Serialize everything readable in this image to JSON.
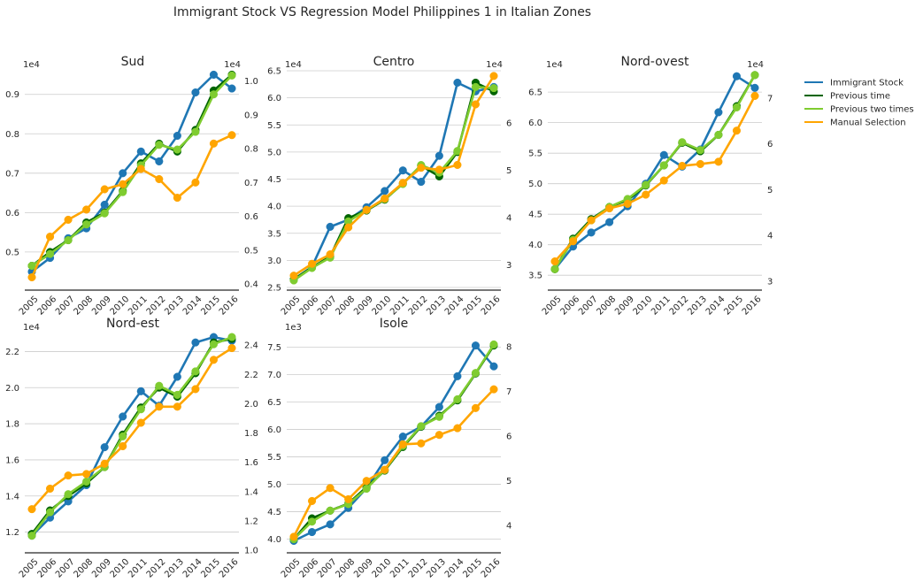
{
  "figure": {
    "title": "Immigrant Stock VS Regression Model Philippines 1 in Italian Zones"
  },
  "legend": {
    "items": [
      {
        "label": "Immigrant Stock",
        "color": "#1f77b4"
      },
      {
        "label": "Previous time",
        "color": "#006400"
      },
      {
        "label": "Previous two times",
        "color": "#7fcc30"
      },
      {
        "label": "Manual Selection",
        "color": "#ffa500"
      }
    ]
  },
  "chart_data": [
    {
      "type": "line",
      "title": "Sud",
      "x": [
        2005,
        2006,
        2007,
        2008,
        2009,
        2010,
        2011,
        2012,
        2013,
        2014,
        2015,
        2016
      ],
      "left_axis": {
        "offset_label": "1e4",
        "ylim": [
          0.41,
          0.96
        ],
        "ticks": [
          0.5,
          0.6,
          0.7,
          0.8,
          0.9
        ],
        "tick_labels": [
          "0.5",
          "0.6",
          "0.7",
          "0.8",
          "0.9"
        ]
      },
      "right_axis": {
        "offset_label": "1e4",
        "ylim": [
          0.39,
          1.03
        ],
        "ticks": [
          0.4,
          0.5,
          0.6,
          0.7,
          0.8,
          0.9,
          1.0
        ],
        "tick_labels": [
          "0.4",
          "0.5",
          "0.6",
          "0.7",
          "0.8",
          "0.9",
          "1.0"
        ]
      },
      "series": [
        {
          "name": "Immigrant Stock",
          "axis": "left",
          "color": "#1f77b4",
          "values": [
            0.45,
            0.485,
            0.535,
            0.56,
            0.62,
            0.7,
            0.755,
            0.73,
            0.795,
            0.905,
            0.95,
            0.915
          ]
        },
        {
          "name": "Previous time",
          "axis": "left",
          "color": "#006400",
          "values": [
            0.465,
            0.5,
            0.53,
            0.575,
            0.6,
            0.655,
            0.725,
            0.775,
            0.755,
            0.81,
            0.91,
            0.95
          ]
        },
        {
          "name": "Previous two times",
          "axis": "left",
          "color": "#7fcc30",
          "values": [
            0.465,
            0.495,
            0.53,
            0.57,
            0.598,
            0.652,
            0.72,
            0.772,
            0.76,
            0.805,
            0.9,
            0.948
          ]
        },
        {
          "name": "Manual Selection",
          "axis": "right",
          "color": "#ffa500",
          "values": [
            0.42,
            0.54,
            0.59,
            0.62,
            0.68,
            0.695,
            0.74,
            0.71,
            0.655,
            0.7,
            0.815,
            0.84
          ]
        }
      ]
    },
    {
      "type": "line",
      "title": "Centro",
      "x": [
        2005,
        2006,
        2007,
        2008,
        2009,
        2010,
        2011,
        2012,
        2013,
        2014,
        2015,
        2016
      ],
      "left_axis": {
        "offset_label": "1e4",
        "ylim": [
          2.5,
          6.5
        ],
        "ticks": [
          2.5,
          3.0,
          3.5,
          4.0,
          4.5,
          5.0,
          5.5,
          6.0,
          6.5
        ],
        "tick_labels": [
          "2.5",
          "3.0",
          "3.5",
          "4.0",
          "4.5",
          "5.0",
          "5.5",
          "6.0",
          "6.5"
        ]
      },
      "right_axis": {
        "offset_label": "1e4",
        "ylim": [
          2.52,
          7.1
        ],
        "ticks": [
          3,
          4,
          5,
          6
        ],
        "tick_labels": [
          "3",
          "4",
          "5",
          "6"
        ]
      },
      "series": [
        {
          "name": "Immigrant Stock",
          "axis": "left",
          "color": "#1f77b4",
          "values": [
            2.65,
            2.88,
            3.62,
            3.75,
            3.98,
            4.28,
            4.66,
            4.45,
            4.93,
            6.28,
            6.12,
            6.2
          ]
        },
        {
          "name": "Previous time",
          "axis": "left",
          "color": "#006400",
          "values": [
            2.65,
            2.87,
            3.07,
            3.78,
            3.92,
            4.12,
            4.42,
            4.75,
            4.55,
            5.0,
            6.28,
            6.12
          ]
        },
        {
          "name": "Previous two times",
          "axis": "left",
          "color": "#7fcc30",
          "values": [
            2.63,
            2.86,
            3.05,
            3.72,
            3.93,
            4.13,
            4.41,
            4.76,
            4.62,
            5.02,
            6.2,
            6.18
          ]
        },
        {
          "name": "Manual Selection",
          "axis": "right",
          "color": "#ffa500",
          "values": [
            2.77,
            3.02,
            3.22,
            3.79,
            4.16,
            4.4,
            4.73,
            5.05,
            5.01,
            5.11,
            6.39,
            6.99
          ]
        }
      ]
    },
    {
      "type": "line",
      "title": "Nord-ovest",
      "x": [
        2005,
        2006,
        2007,
        2008,
        2009,
        2010,
        2011,
        2012,
        2013,
        2014,
        2015,
        2016
      ],
      "left_axis": {
        "offset_label": "1e4",
        "ylim": [
          3.3,
          6.85
        ],
        "ticks": [
          3.5,
          4.0,
          4.5,
          5.0,
          5.5,
          6.0,
          6.5
        ],
        "tick_labels": [
          "3.5",
          "4.0",
          "4.5",
          "5.0",
          "5.5",
          "6.0",
          "6.5"
        ]
      },
      "right_axis": {
        "offset_label": "1e4",
        "ylim": [
          2.86,
          7.6
        ],
        "ticks": [
          3,
          4,
          5,
          6,
          7
        ],
        "tick_labels": [
          "3",
          "4",
          "5",
          "6",
          "7"
        ]
      },
      "series": [
        {
          "name": "Immigrant Stock",
          "axis": "left",
          "color": "#1f77b4",
          "values": [
            3.6,
            3.97,
            4.2,
            4.37,
            4.63,
            5.0,
            5.47,
            5.28,
            5.56,
            6.17,
            6.76,
            6.57
          ]
        },
        {
          "name": "Previous time",
          "axis": "left",
          "color": "#006400",
          "values": [
            3.6,
            4.1,
            4.42,
            4.62,
            4.73,
            4.97,
            5.3,
            5.67,
            5.53,
            5.8,
            6.27,
            6.78
          ]
        },
        {
          "name": "Previous two times",
          "axis": "left",
          "color": "#7fcc30",
          "values": [
            3.6,
            4.08,
            4.4,
            4.62,
            4.75,
            4.98,
            5.3,
            5.68,
            5.55,
            5.8,
            6.25,
            6.78
          ]
        },
        {
          "name": "Manual Selection",
          "axis": "right",
          "color": "#ffa500",
          "values": [
            3.43,
            3.87,
            4.33,
            4.59,
            4.69,
            4.89,
            5.2,
            5.52,
            5.56,
            5.61,
            6.29,
            7.05
          ]
        }
      ]
    },
    {
      "type": "line",
      "title": "Nord-est",
      "x": [
        2005,
        2006,
        2007,
        2008,
        2009,
        2010,
        2011,
        2012,
        2013,
        2014,
        2015,
        2016
      ],
      "left_axis": {
        "offset_label": "1e4",
        "ylim": [
          1.1,
          2.3
        ],
        "ticks": [
          1.2,
          1.4,
          1.6,
          1.8,
          2.0,
          2.2
        ],
        "tick_labels": [
          "1.2",
          "1.4",
          "1.6",
          "1.8",
          "2.0",
          "2.2"
        ]
      },
      "right_axis": {
        "offset_label": "",
        "ylim": [
          1.0,
          2.48
        ],
        "ticks": [
          1.0,
          1.2,
          1.4,
          1.6,
          1.8,
          2.0,
          2.2,
          2.4
        ],
        "tick_labels": [
          "1.0",
          "1.2",
          "1.4",
          "1.6",
          "1.8",
          "2.0",
          "2.2",
          "2.4"
        ]
      },
      "series": [
        {
          "name": "Immigrant Stock",
          "axis": "left",
          "color": "#1f77b4",
          "values": [
            1.18,
            1.28,
            1.37,
            1.46,
            1.67,
            1.84,
            1.98,
            1.9,
            2.06,
            2.25,
            2.28,
            2.26
          ]
        },
        {
          "name": "Previous time",
          "axis": "left",
          "color": "#006400",
          "values": [
            1.19,
            1.32,
            1.4,
            1.47,
            1.56,
            1.74,
            1.89,
            2.0,
            1.95,
            2.08,
            2.25,
            2.27
          ]
        },
        {
          "name": "Previous two times",
          "axis": "left",
          "color": "#7fcc30",
          "values": [
            1.18,
            1.31,
            1.41,
            1.48,
            1.56,
            1.73,
            1.88,
            2.01,
            1.96,
            2.09,
            2.24,
            2.28
          ]
        },
        {
          "name": "Manual Selection",
          "axis": "right",
          "color": "#ffa500",
          "values": [
            1.28,
            1.42,
            1.51,
            1.52,
            1.59,
            1.71,
            1.87,
            1.98,
            1.98,
            2.1,
            2.3,
            2.38
          ]
        }
      ]
    },
    {
      "type": "line",
      "title": "Isole",
      "x": [
        2005,
        2006,
        2007,
        2008,
        2009,
        2010,
        2011,
        2012,
        2013,
        2014,
        2015,
        2016
      ],
      "left_axis": {
        "offset_label": "1e3",
        "ylim": [
          3.8,
          7.75
        ],
        "ticks": [
          4.0,
          4.5,
          5.0,
          5.5,
          6.0,
          6.5,
          7.0,
          7.5
        ],
        "tick_labels": [
          "4.0",
          "4.5",
          "5.0",
          "5.5",
          "6.0",
          "6.5",
          "7.0",
          "7.5"
        ]
      },
      "right_axis": {
        "offset_label": "",
        "ylim": [
          3.45,
          8.3
        ],
        "ticks": [
          4,
          5,
          6,
          7,
          8
        ],
        "tick_labels": [
          "4",
          "5",
          "6",
          "7",
          "8"
        ]
      },
      "series": [
        {
          "name": "Immigrant Stock",
          "axis": "left",
          "color": "#1f77b4",
          "values": [
            3.97,
            4.13,
            4.27,
            4.57,
            4.93,
            5.44,
            5.87,
            6.05,
            6.41,
            6.97,
            7.53,
            7.15
          ]
        },
        {
          "name": "Previous time",
          "axis": "left",
          "color": "#006400",
          "values": [
            4.0,
            4.38,
            4.52,
            4.65,
            4.95,
            5.25,
            5.68,
            6.05,
            6.25,
            6.53,
            7.02,
            7.53
          ]
        },
        {
          "name": "Previous two times",
          "axis": "left",
          "color": "#7fcc30",
          "values": [
            4.0,
            4.32,
            4.52,
            4.64,
            4.92,
            5.26,
            5.7,
            6.06,
            6.23,
            6.55,
            7.03,
            7.55
          ]
        },
        {
          "name": "Manual Selection",
          "axis": "right",
          "color": "#ffa500",
          "values": [
            3.75,
            4.55,
            4.84,
            4.59,
            5.0,
            5.25,
            5.82,
            5.84,
            6.03,
            6.18,
            6.63,
            7.05
          ]
        }
      ]
    }
  ]
}
